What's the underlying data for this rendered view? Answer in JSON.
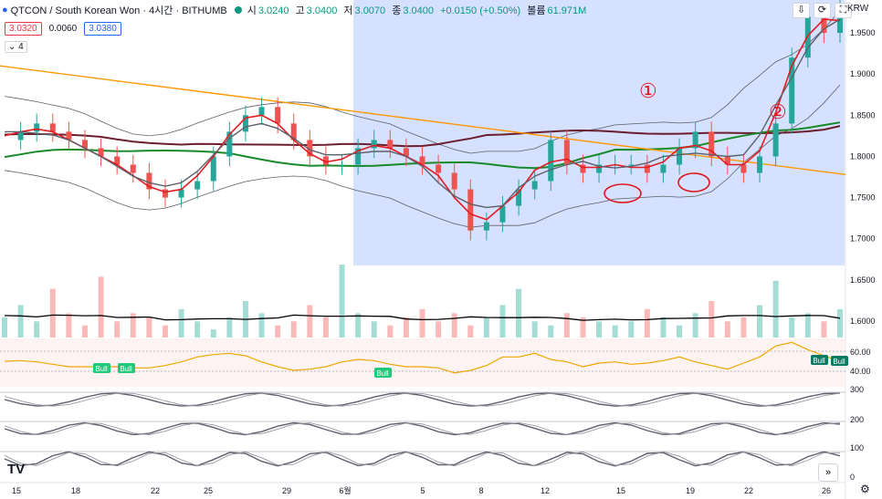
{
  "header": {
    "symbol": "QTCON / South Korean Won · 4시간 · BITHUMB",
    "o_label": "시",
    "o_val": "3.0240",
    "h_label": "고",
    "h_val": "3.0400",
    "l_label": "저",
    "l_val": "3.0070",
    "c_label": "종",
    "c_val": "3.0400",
    "chg": "+0.0150 (+0.50%)",
    "vol_label": "볼륨",
    "vol_val": "61.971M",
    "sell_price": "3.0320",
    "spread": "0.0060",
    "buy_price": "3.0380",
    "collapse_label": "4",
    "currency": "KRW"
  },
  "icons": {
    "down_arrow": "⇩",
    "refresh": "⟳",
    "fullscreen": "⛶",
    "expand": "›",
    "nav_forward": "»",
    "settings": "⚙",
    "logo": "TV"
  },
  "colors": {
    "up": "#26a69a",
    "down": "#ef5350",
    "ma_red": "#e31b23",
    "ma_dark": "#5d606b",
    "ma_green": "#178a29",
    "ma_maroon": "#6b1f2e",
    "trend": "#ff9800",
    "bb": "#5d606b",
    "shade": "#c8d6ff",
    "ink": "#e0121f",
    "osc": "#f0a800",
    "bull": "#22c97a"
  },
  "chart_data": {
    "type": "candlestick",
    "x_ticks": [
      "15",
      "18",
      "22",
      "25",
      "29",
      "6월",
      "5",
      "8",
      "12",
      "15",
      "19",
      "22",
      "26"
    ],
    "y_ticks": [
      "1.9500",
      "1.9000",
      "1.8500",
      "1.8000",
      "1.7500",
      "1.7000",
      "1.6500",
      "1.6000"
    ],
    "osc_y_ticks": [
      "60.00",
      "40.00"
    ],
    "stoch_y_ticks": [
      "300",
      "200",
      "100",
      "0"
    ],
    "bull_labels": [
      "Bull",
      "Bull",
      "Bull",
      "Bull",
      "Bull"
    ],
    "annotations": [
      "①",
      "②"
    ],
    "price_scale": {
      "min": 1.58,
      "max": 1.99
    },
    "price_path": [
      1.82,
      1.83,
      1.84,
      1.83,
      1.82,
      1.81,
      1.8,
      1.79,
      1.78,
      1.76,
      1.75,
      1.76,
      1.77,
      1.8,
      1.83,
      1.85,
      1.86,
      1.84,
      1.82,
      1.8,
      1.79,
      1.79,
      1.81,
      1.82,
      1.81,
      1.8,
      1.79,
      1.78,
      1.76,
      1.71,
      1.72,
      1.74,
      1.76,
      1.77,
      1.82,
      1.79,
      1.78,
      1.79,
      1.79,
      1.79,
      1.78,
      1.79,
      1.81,
      1.83,
      1.8,
      1.79,
      1.78,
      1.8,
      1.84,
      1.92,
      1.97,
      1.95,
      1.98
    ],
    "vol_series": [
      5,
      8,
      4,
      12,
      6,
      3,
      15,
      4,
      6,
      5,
      3,
      7,
      4,
      2,
      5,
      9,
      6,
      3,
      4,
      8,
      5,
      18,
      6,
      4,
      3,
      5,
      7,
      4,
      6,
      3,
      5,
      8,
      12,
      4,
      3,
      6,
      5,
      4,
      3,
      4,
      7,
      5,
      3,
      6,
      9,
      4,
      5,
      8,
      14,
      5,
      6,
      4,
      7
    ]
  }
}
